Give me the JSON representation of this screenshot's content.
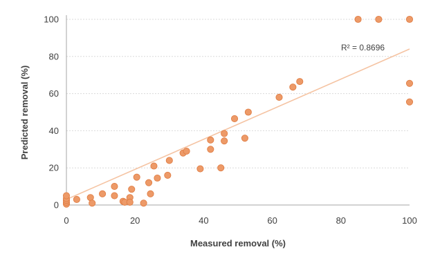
{
  "chart_data": {
    "type": "scatter",
    "title": "",
    "xlabel": "Measured removal (%)",
    "ylabel": "Predicted removal (%)",
    "xlim": [
      0,
      100
    ],
    "ylim": [
      0,
      100
    ],
    "xticks": [
      "0",
      "20",
      "40",
      "60",
      "80",
      "100"
    ],
    "yticks": [
      "0",
      "20",
      "40",
      "60",
      "80",
      "100"
    ],
    "grid": "horizontal",
    "legend": "none",
    "colors": {
      "points": "#ED9A68",
      "point_edge": "#E07E45",
      "trendline": "#F5C3A2",
      "grid": "#D9D9D9",
      "axis": "#A6A6A6"
    },
    "annotation": "R² = 0.8696",
    "trendline": {
      "type": "linear",
      "x": [
        0,
        100
      ],
      "y": [
        3,
        84
      ]
    },
    "points": {
      "x": [
        0,
        0,
        0,
        0,
        0,
        3,
        7,
        7.5,
        10.5,
        14,
        14,
        16.5,
        17,
        18.5,
        18.5,
        19,
        20.5,
        22.5,
        24,
        24.5,
        25.5,
        26.5,
        29.5,
        30,
        34,
        35,
        39,
        42,
        42,
        45,
        46,
        46,
        49,
        52,
        53,
        62,
        66,
        68,
        85,
        91,
        100,
        100,
        100
      ],
      "y": [
        0.5,
        1.5,
        2.5,
        3.5,
        5,
        3,
        4,
        1,
        6,
        10,
        5,
        2,
        1.5,
        4,
        1.5,
        8.5,
        15,
        1,
        12,
        6,
        21,
        14.5,
        16,
        24,
        28,
        29,
        19.5,
        30,
        35,
        20,
        34.5,
        38.5,
        46.5,
        36,
        50,
        58,
        63.5,
        66.5,
        100,
        100,
        100,
        65.5,
        55.5
      ]
    }
  }
}
